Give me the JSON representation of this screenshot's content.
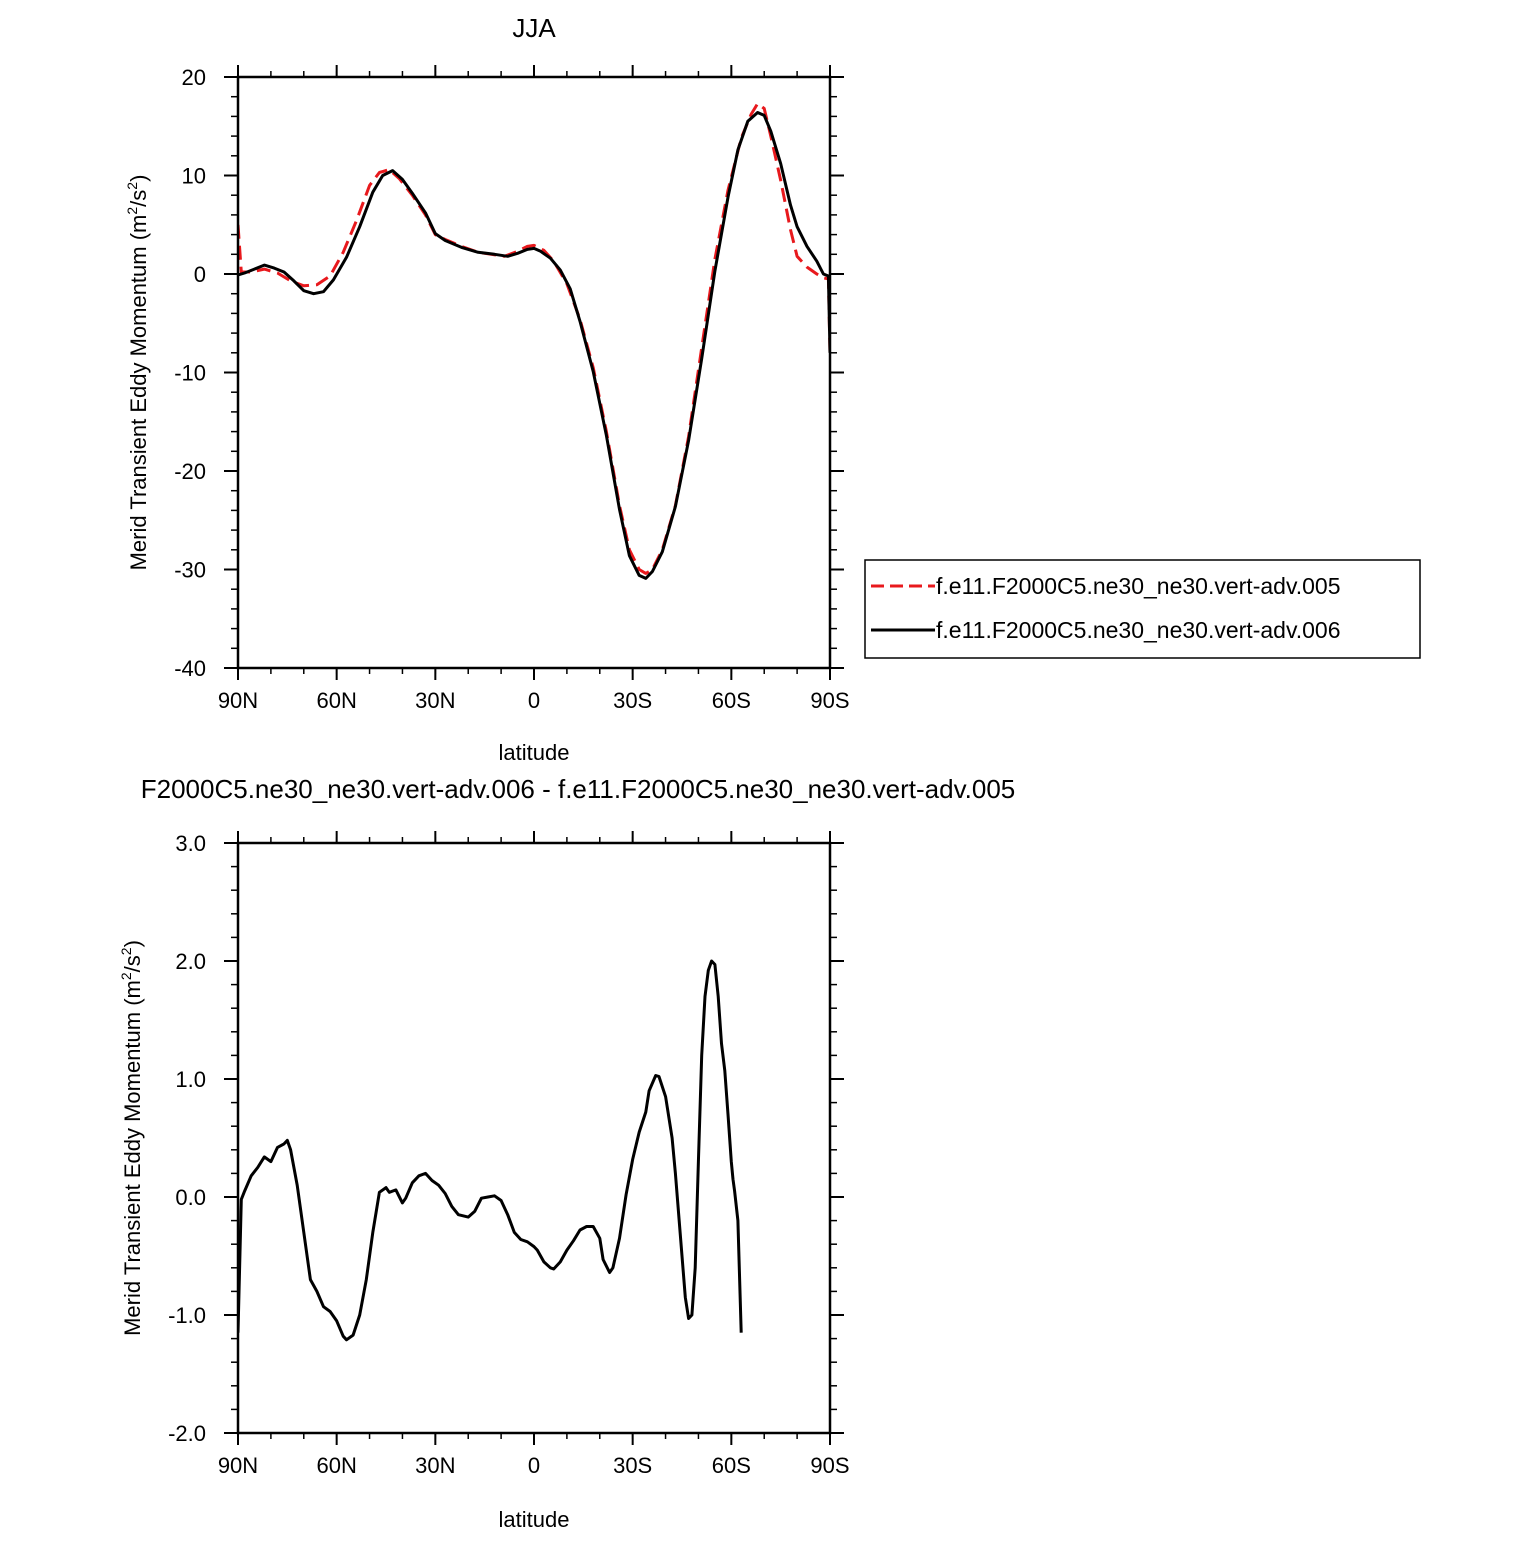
{
  "chart_data": [
    {
      "type": "line",
      "title": "JJA",
      "xlabel": "latitude",
      "ylabel": {
        "main": "Merid Transient Eddy Momentum (m",
        "sup1": "2",
        "mid": "/s",
        "sup2": "2",
        "end": ")"
      },
      "xlim": [
        -90,
        90
      ],
      "ylim": [
        -40,
        20
      ],
      "x_ticks": [
        {
          "value": -90,
          "label": "90N"
        },
        {
          "value": -60,
          "label": "60N"
        },
        {
          "value": -30,
          "label": "30N"
        },
        {
          "value": 0,
          "label": "0"
        },
        {
          "value": 30,
          "label": "30S"
        },
        {
          "value": 60,
          "label": "60S"
        },
        {
          "value": 90,
          "label": "90S"
        }
      ],
      "y_ticks": [
        {
          "value": 20,
          "label": "20"
        },
        {
          "value": 10,
          "label": "10"
        },
        {
          "value": 0,
          "label": "0"
        },
        {
          "value": -10,
          "label": "-10"
        },
        {
          "value": -20,
          "label": "-20"
        },
        {
          "value": -30,
          "label": "-30"
        },
        {
          "value": -40,
          "label": "-40"
        }
      ],
      "legend": "right",
      "series": [
        {
          "name": "f.e11.F2000C5.ne30_ne30.vert-adv.005",
          "color": "#e8191d",
          "style": "dashed",
          "points": [
            [
              -90,
              5
            ],
            [
              -89,
              0.2
            ],
            [
              -86,
              0.2
            ],
            [
              -82,
              0.5
            ],
            [
              -78,
              0.1
            ],
            [
              -74,
              -0.7
            ],
            [
              -70,
              -1.2
            ],
            [
              -66,
              -1.1
            ],
            [
              -62,
              -0.2
            ],
            [
              -58,
              2.2
            ],
            [
              -54,
              5.4
            ],
            [
              -50,
              9.0
            ],
            [
              -47,
              10.3
            ],
            [
              -44,
              10.6
            ],
            [
              -41,
              9.7
            ],
            [
              -37,
              8.0
            ],
            [
              -33,
              6.0
            ],
            [
              -30,
              4.0
            ],
            [
              -27,
              3.5
            ],
            [
              -22,
              2.8
            ],
            [
              -17,
              2.2
            ],
            [
              -13,
              2.0
            ],
            [
              -9,
              1.8
            ],
            [
              -5,
              2.3
            ],
            [
              -2,
              2.8
            ],
            [
              0,
              2.9
            ],
            [
              3,
              2.4
            ],
            [
              6,
              1.3
            ],
            [
              10,
              -1.0
            ],
            [
              14,
              -4.6
            ],
            [
              18,
              -9.5
            ],
            [
              22,
              -16.0
            ],
            [
              26,
              -23.5
            ],
            [
              29,
              -28.0
            ],
            [
              32,
              -30.0
            ],
            [
              34,
              -30.4
            ],
            [
              36,
              -30.0
            ],
            [
              39,
              -28.0
            ],
            [
              43,
              -23.5
            ],
            [
              47,
              -16.5
            ],
            [
              51,
              -7.5
            ],
            [
              55,
              1.5
            ],
            [
              59,
              8.5
            ],
            [
              63,
              13.8
            ],
            [
              66,
              16.2
            ],
            [
              68,
              17.3
            ],
            [
              70,
              16.8
            ],
            [
              72,
              14.0
            ],
            [
              75,
              9.5
            ],
            [
              78,
              4.5
            ],
            [
              80,
              1.8
            ],
            [
              83,
              0.7
            ],
            [
              86,
              0.0
            ],
            [
              88,
              -0.4
            ],
            [
              89.5,
              -0.5
            ],
            [
              90,
              -8
            ]
          ]
        },
        {
          "name": "f.e11.F2000C5.ne30_ne30.vert-adv.006",
          "color": "#000000",
          "style": "solid",
          "points": [
            [
              -90,
              -0.1
            ],
            [
              -88,
              0.1
            ],
            [
              -85,
              0.5
            ],
            [
              -82,
              0.9
            ],
            [
              -79,
              0.6
            ],
            [
              -76,
              0.2
            ],
            [
              -73,
              -0.7
            ],
            [
              -70,
              -1.7
            ],
            [
              -67,
              -2.0
            ],
            [
              -64,
              -1.8
            ],
            [
              -61,
              -0.6
            ],
            [
              -57,
              1.7
            ],
            [
              -53,
              4.8
            ],
            [
              -49,
              8.3
            ],
            [
              -46,
              10.0
            ],
            [
              -43,
              10.5
            ],
            [
              -40,
              9.6
            ],
            [
              -37,
              8.2
            ],
            [
              -33,
              6.2
            ],
            [
              -30,
              4.1
            ],
            [
              -27,
              3.4
            ],
            [
              -22,
              2.7
            ],
            [
              -17,
              2.2
            ],
            [
              -12,
              2.0
            ],
            [
              -8,
              1.8
            ],
            [
              -5,
              2.1
            ],
            [
              -2,
              2.5
            ],
            [
              0,
              2.6
            ],
            [
              2,
              2.3
            ],
            [
              5,
              1.6
            ],
            [
              8,
              0.4
            ],
            [
              11,
              -1.5
            ],
            [
              14,
              -4.8
            ],
            [
              18,
              -9.9
            ],
            [
              22,
              -16.4
            ],
            [
              26,
              -23.9
            ],
            [
              29,
              -28.6
            ],
            [
              32,
              -30.6
            ],
            [
              34,
              -30.9
            ],
            [
              36,
              -30.2
            ],
            [
              39,
              -28.2
            ],
            [
              43,
              -23.6
            ],
            [
              47,
              -16.9
            ],
            [
              51,
              -8.6
            ],
            [
              55,
              0.3
            ],
            [
              59,
              7.8
            ],
            [
              62,
              12.6
            ],
            [
              65,
              15.5
            ],
            [
              68,
              16.4
            ],
            [
              70,
              16.1
            ],
            [
              72,
              14.5
            ],
            [
              75,
              11.2
            ],
            [
              78,
              7.0
            ],
            [
              80,
              4.8
            ],
            [
              83,
              2.8
            ],
            [
              86,
              1.3
            ],
            [
              88,
              0.0
            ],
            [
              89.5,
              -0.2
            ],
            [
              90,
              -8
            ]
          ]
        }
      ]
    },
    {
      "type": "line",
      "title": "F2000C5.ne30_ne30.vert-adv.006 - f.e11.F2000C5.ne30_ne30.vert-adv.005",
      "xlabel": "latitude",
      "ylabel": {
        "main": "Merid Transient Eddy Momentum (m",
        "sup1": "2",
        "mid": "/s",
        "sup2": "2",
        "end": ")"
      },
      "xlim": [
        -90,
        90
      ],
      "ylim": [
        -2,
        3
      ],
      "x_ticks": [
        {
          "value": -90,
          "label": "90N"
        },
        {
          "value": -60,
          "label": "60N"
        },
        {
          "value": -30,
          "label": "30N"
        },
        {
          "value": 0,
          "label": "0"
        },
        {
          "value": 30,
          "label": "30S"
        },
        {
          "value": 60,
          "label": "60S"
        },
        {
          "value": 90,
          "label": "90S"
        }
      ],
      "y_ticks": [
        {
          "value": 3,
          "label": "3.0"
        },
        {
          "value": 2,
          "label": "2.0"
        },
        {
          "value": 1,
          "label": "1.0"
        },
        {
          "value": 0,
          "label": "0.0"
        },
        {
          "value": -1,
          "label": "-1.0"
        },
        {
          "value": -2,
          "label": "-2.0"
        }
      ],
      "series": [
        {
          "color": "#000000",
          "style": "solid",
          "points": [
            [
              -90,
              -1.15
            ],
            [
              -89,
              -0.02
            ],
            [
              -88,
              0.05
            ],
            [
              -86,
              0.18
            ],
            [
              -84,
              0.25
            ],
            [
              -82,
              0.34
            ],
            [
              -80,
              0.3
            ],
            [
              -78,
              0.42
            ],
            [
              -76,
              0.45
            ],
            [
              -75,
              0.48
            ],
            [
              -74,
              0.4
            ],
            [
              -72,
              0.1
            ],
            [
              -70,
              -0.3
            ],
            [
              -68,
              -0.7
            ],
            [
              -66,
              -0.8
            ],
            [
              -64,
              -0.93
            ],
            [
              -62,
              -0.97
            ],
            [
              -60,
              -1.05
            ],
            [
              -58,
              -1.18
            ],
            [
              -57,
              -1.21
            ],
            [
              -55,
              -1.17
            ],
            [
              -53,
              -1.0
            ],
            [
              -51,
              -0.7
            ],
            [
              -49,
              -0.3
            ],
            [
              -47,
              0.04
            ],
            [
              -45,
              0.08
            ],
            [
              -44,
              0.04
            ],
            [
              -42,
              0.06
            ],
            [
              -40,
              -0.05
            ],
            [
              -39,
              -0.01
            ],
            [
              -37,
              0.12
            ],
            [
              -35,
              0.18
            ],
            [
              -33,
              0.2
            ],
            [
              -31,
              0.14
            ],
            [
              -29,
              0.1
            ],
            [
              -27,
              0.03
            ],
            [
              -25,
              -0.08
            ],
            [
              -23,
              -0.15
            ],
            [
              -20,
              -0.17
            ],
            [
              -18,
              -0.12
            ],
            [
              -16,
              -0.01
            ],
            [
              -14,
              0.0
            ],
            [
              -12,
              0.01
            ],
            [
              -10,
              -0.03
            ],
            [
              -8,
              -0.15
            ],
            [
              -6,
              -0.3
            ],
            [
              -4,
              -0.36
            ],
            [
              -2,
              -0.38
            ],
            [
              0,
              -0.42
            ],
            [
              1,
              -0.45
            ],
            [
              3,
              -0.55
            ],
            [
              5,
              -0.6
            ],
            [
              6,
              -0.61
            ],
            [
              8,
              -0.55
            ],
            [
              10,
              -0.45
            ],
            [
              12,
              -0.37
            ],
            [
              14,
              -0.28
            ],
            [
              16,
              -0.25
            ],
            [
              18,
              -0.25
            ],
            [
              20,
              -0.35
            ],
            [
              21,
              -0.53
            ],
            [
              23,
              -0.64
            ],
            [
              24,
              -0.6
            ],
            [
              26,
              -0.35
            ],
            [
              28,
              0.02
            ],
            [
              30,
              0.32
            ],
            [
              32,
              0.55
            ],
            [
              34,
              0.72
            ],
            [
              35,
              0.9
            ],
            [
              37,
              1.03
            ],
            [
              38,
              1.02
            ],
            [
              40,
              0.85
            ],
            [
              42,
              0.5
            ],
            [
              43,
              0.2
            ],
            [
              45,
              -0.5
            ],
            [
              46,
              -0.85
            ],
            [
              47,
              -1.03
            ],
            [
              48,
              -1.0
            ],
            [
              49,
              -0.6
            ],
            [
              50,
              0.3
            ],
            [
              51,
              1.2
            ],
            [
              52,
              1.7
            ],
            [
              53,
              1.92
            ],
            [
              54,
              2.0
            ],
            [
              55,
              1.97
            ],
            [
              56,
              1.7
            ],
            [
              57,
              1.3
            ],
            [
              58,
              1.07
            ],
            [
              59,
              0.7
            ],
            [
              60,
              0.3
            ],
            [
              60.5,
              0.15
            ],
            [
              61,
              0.05
            ],
            [
              62,
              -0.2
            ],
            [
              63,
              -1.15
            ]
          ]
        }
      ]
    }
  ]
}
